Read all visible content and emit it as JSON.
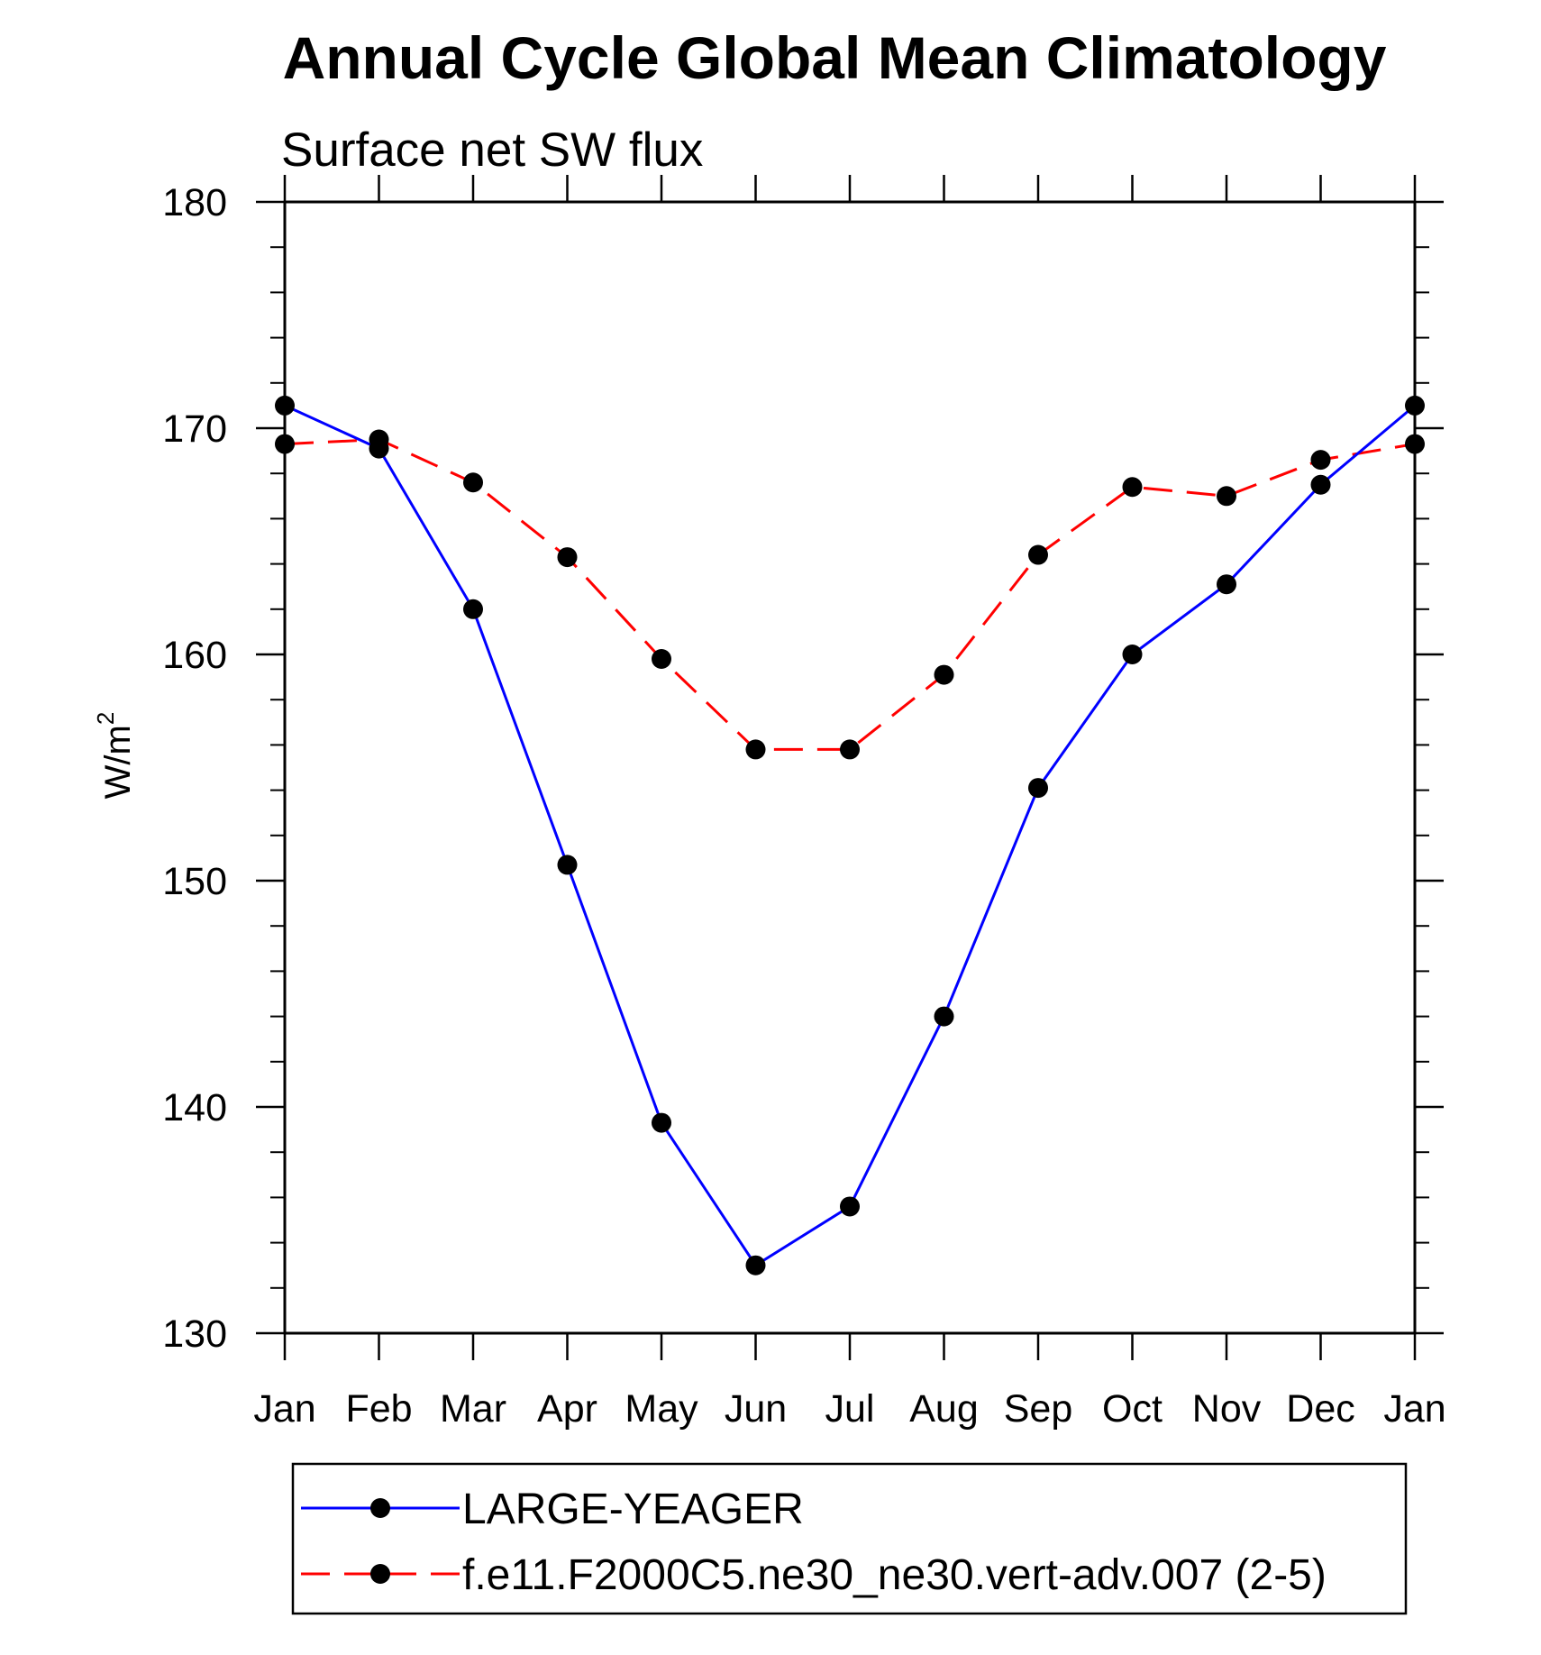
{
  "chart_data": {
    "type": "line",
    "title": "Annual Cycle Global Mean Climatology",
    "subtitle": "Surface net SW flux",
    "ylabel_base": "W/m",
    "ylabel_sup": "2",
    "xlabel": "",
    "categories": [
      "Jan",
      "Feb",
      "Mar",
      "Apr",
      "May",
      "Jun",
      "Jul",
      "Aug",
      "Sep",
      "Oct",
      "Nov",
      "Dec",
      "Jan"
    ],
    "ylim": [
      130,
      180
    ],
    "yticks": [
      130,
      140,
      150,
      160,
      170,
      180
    ],
    "y_minor_step": 2,
    "grid": false,
    "legend_position": "bottom",
    "series": [
      {
        "name": "LARGE-YEAGER",
        "color": "#0000ff",
        "dash": "solid",
        "values": [
          171.0,
          169.1,
          162.0,
          150.7,
          139.3,
          133.0,
          135.6,
          144.0,
          154.1,
          160.0,
          163.1,
          167.5,
          171.0
        ]
      },
      {
        "name": "f.e11.F2000C5.ne30_ne30.vert-adv.007 (2-5)",
        "color": "#ff0000",
        "dash": "dashed",
        "values": [
          169.3,
          169.5,
          167.6,
          164.3,
          159.8,
          155.8,
          155.8,
          159.1,
          164.4,
          167.4,
          167.0,
          168.6,
          169.3
        ]
      }
    ]
  }
}
